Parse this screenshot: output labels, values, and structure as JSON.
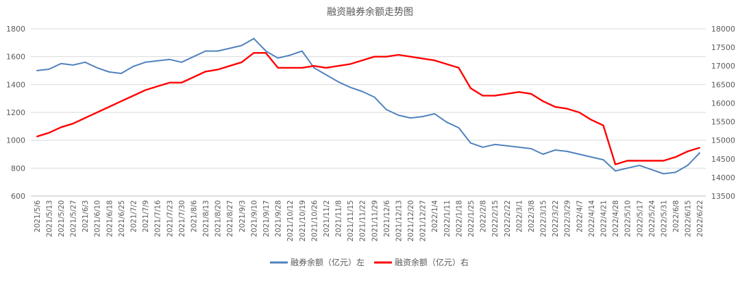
{
  "chart_data": {
    "type": "line",
    "title": "融资融券余额走势图",
    "x": [
      "2021/5/6",
      "2021/5/13",
      "2021/5/20",
      "2021/5/27",
      "2021/6/3",
      "2021/6/10",
      "2021/6/18",
      "2021/6/25",
      "2021/7/2",
      "2021/7/9",
      "2021/7/16",
      "2021/7/23",
      "2021/7/30",
      "2021/8/6",
      "2021/8/13",
      "2021/8/20",
      "2021/8/27",
      "2021/9/3",
      "2021/9/10",
      "2021/9/17",
      "2021/9/28",
      "2021/10/12",
      "2021/10/19",
      "2021/10/26",
      "2021/11/2",
      "2021/11/8",
      "2021/11/15",
      "2021/11/22",
      "2021/11/29",
      "2021/12/6",
      "2021/12/13",
      "2021/12/20",
      "2021/12/27",
      "2022/1/4",
      "2022/1/11",
      "2022/1/18",
      "2022/1/25",
      "2022/2/8",
      "2022/2/15",
      "2022/2/22",
      "2022/3/1",
      "2022/3/8",
      "2022/3/15",
      "2022/3/22",
      "2022/3/29",
      "2022/4/7",
      "2022/4/14",
      "2022/4/21",
      "2022/4/28",
      "2022/5/10",
      "2022/5/17",
      "2022/5/24",
      "2022/5/31",
      "2022/6/8",
      "2022/6/15",
      "2022/6/22"
    ],
    "series": [
      {
        "name": "融券余额（亿元）左",
        "axis": "left",
        "color": "#4f81bd",
        "values": [
          1500,
          1510,
          1550,
          1540,
          1560,
          1520,
          1490,
          1480,
          1530,
          1560,
          1570,
          1580,
          1560,
          1600,
          1640,
          1640,
          1660,
          1680,
          1730,
          1640,
          1590,
          1610,
          1640,
          1520,
          1470,
          1420,
          1380,
          1350,
          1310,
          1220,
          1180,
          1160,
          1170,
          1190,
          1130,
          1090,
          980,
          950,
          970,
          960,
          950,
          940,
          900,
          930,
          920,
          900,
          880,
          860,
          780,
          800,
          820,
          790,
          760,
          770,
          820,
          910
        ]
      },
      {
        "name": "融资余额（亿元）右",
        "axis": "right",
        "color": "#ff0000",
        "values": [
          15100,
          15200,
          15350,
          15450,
          15600,
          15750,
          15900,
          16050,
          16200,
          16350,
          16450,
          16550,
          16550,
          16700,
          16850,
          16900,
          17000,
          17100,
          17350,
          17350,
          16950,
          16950,
          16950,
          17000,
          16950,
          17000,
          17050,
          17150,
          17250,
          17250,
          17300,
          17250,
          17200,
          17150,
          17050,
          16950,
          16400,
          16200,
          16200,
          16250,
          16300,
          16250,
          16050,
          15900,
          15850,
          15750,
          15550,
          15400,
          14350,
          14450,
          14450,
          14450,
          14450,
          14550,
          14700,
          14800
        ]
      }
    ],
    "y_left": {
      "min": 600,
      "max": 1800,
      "ticks": [
        600,
        800,
        1000,
        1200,
        1400,
        1600,
        1800
      ]
    },
    "y_right": {
      "min": 13500,
      "max": 18000,
      "ticks": [
        13500,
        14000,
        14500,
        15000,
        15500,
        16000,
        16500,
        17000,
        17500,
        18000
      ]
    },
    "grid": true,
    "legend": "bottom"
  }
}
